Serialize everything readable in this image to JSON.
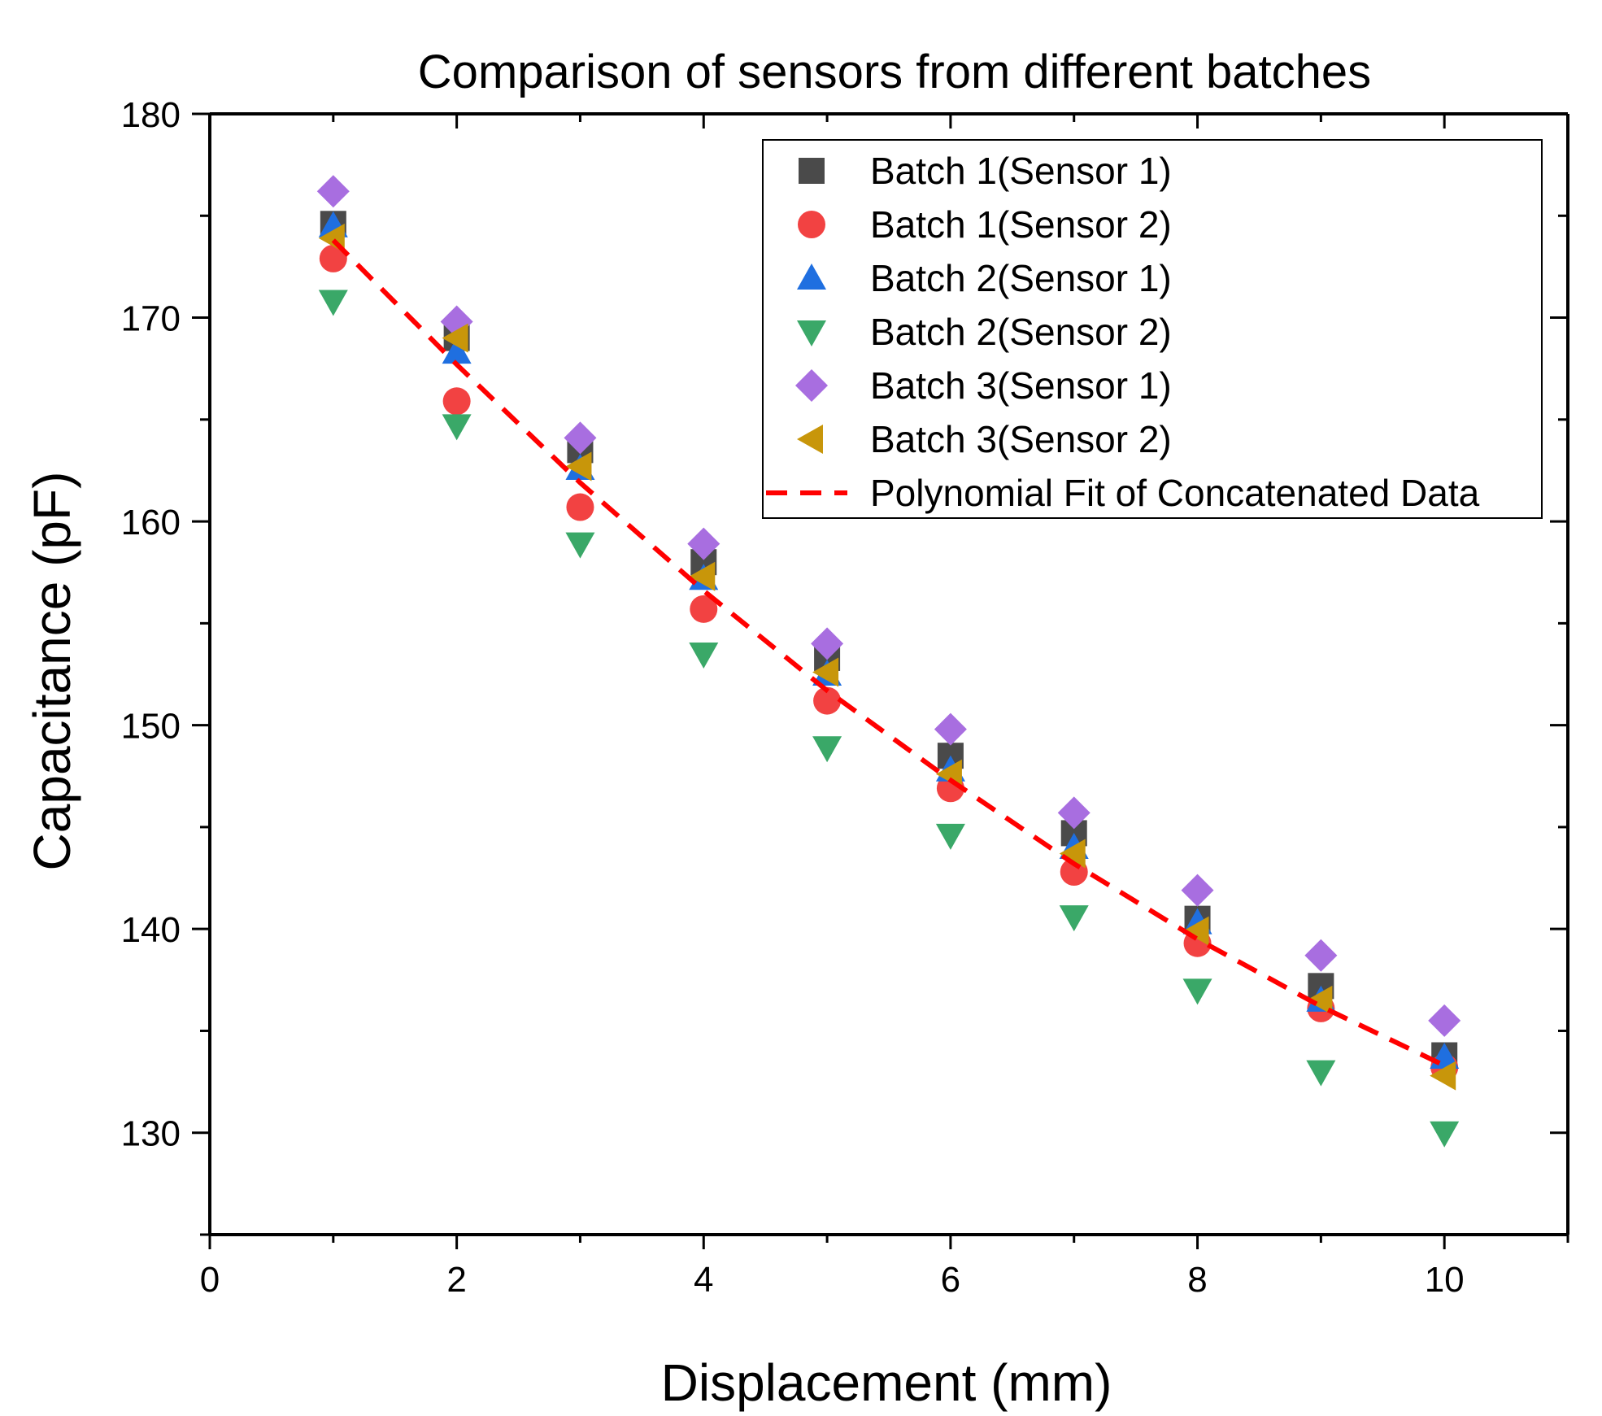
{
  "chart_data": {
    "type": "scatter",
    "title": "Comparison of sensors from different batches",
    "xlabel": "Displacement (mm)",
    "ylabel": "Capacitance (pF)",
    "xlim": [
      0,
      11
    ],
    "ylim": [
      125,
      180
    ],
    "x_ticks": [
      0,
      2,
      4,
      6,
      8,
      10
    ],
    "y_ticks": [
      130,
      140,
      150,
      160,
      170,
      180
    ],
    "x_minor_step": 1,
    "y_minor_step": 5,
    "x": [
      1,
      2,
      3,
      4,
      5,
      6,
      7,
      8,
      9,
      10
    ],
    "series": [
      {
        "name": "Batch 1(Sensor 1)",
        "marker": "square",
        "color": "#4a4a4a",
        "values": [
          174.6,
          169.0,
          163.5,
          158.0,
          153.3,
          148.5,
          144.7,
          140.5,
          137.2,
          133.8
        ]
      },
      {
        "name": "Batch 1(Sensor 2)",
        "marker": "circle",
        "color": "#f24242",
        "values": [
          172.9,
          165.9,
          160.7,
          155.7,
          151.2,
          146.9,
          142.8,
          139.3,
          136.1,
          133.2
        ]
      },
      {
        "name": "Batch 2(Sensor 1)",
        "marker": "triangle-up",
        "color": "#1f6fe0",
        "values": [
          174.5,
          168.3,
          162.6,
          157.2,
          152.5,
          147.8,
          144.0,
          140.3,
          136.5,
          133.7
        ]
      },
      {
        "name": "Batch 2(Sensor 2)",
        "marker": "triangle-down",
        "color": "#3aa868",
        "values": [
          170.8,
          164.7,
          158.9,
          153.5,
          148.9,
          144.6,
          140.6,
          137.0,
          133.0,
          130.0
        ]
      },
      {
        "name": "Batch 3(Sensor 1)",
        "marker": "diamond",
        "color": "#a86ee0",
        "values": [
          176.2,
          169.8,
          164.1,
          158.9,
          154.0,
          149.8,
          145.7,
          141.9,
          138.7,
          135.5
        ]
      },
      {
        "name": "Batch 3(Sensor 2)",
        "marker": "triangle-left",
        "color": "#c8960a",
        "values": [
          173.9,
          169.0,
          162.7,
          157.3,
          152.6,
          147.6,
          143.7,
          139.9,
          136.5,
          132.8
        ]
      }
    ],
    "fit": {
      "name": "Polynomial Fit of Concatenated Data",
      "style": "dashed",
      "color": "#ff0000",
      "x": [
        1,
        2,
        3,
        4,
        5,
        6,
        7,
        8,
        9,
        10
      ],
      "values": [
        173.8,
        167.7,
        161.9,
        156.6,
        151.7,
        147.3,
        143.2,
        139.5,
        136.2,
        133.3
      ]
    },
    "legend_position": "top-right"
  }
}
